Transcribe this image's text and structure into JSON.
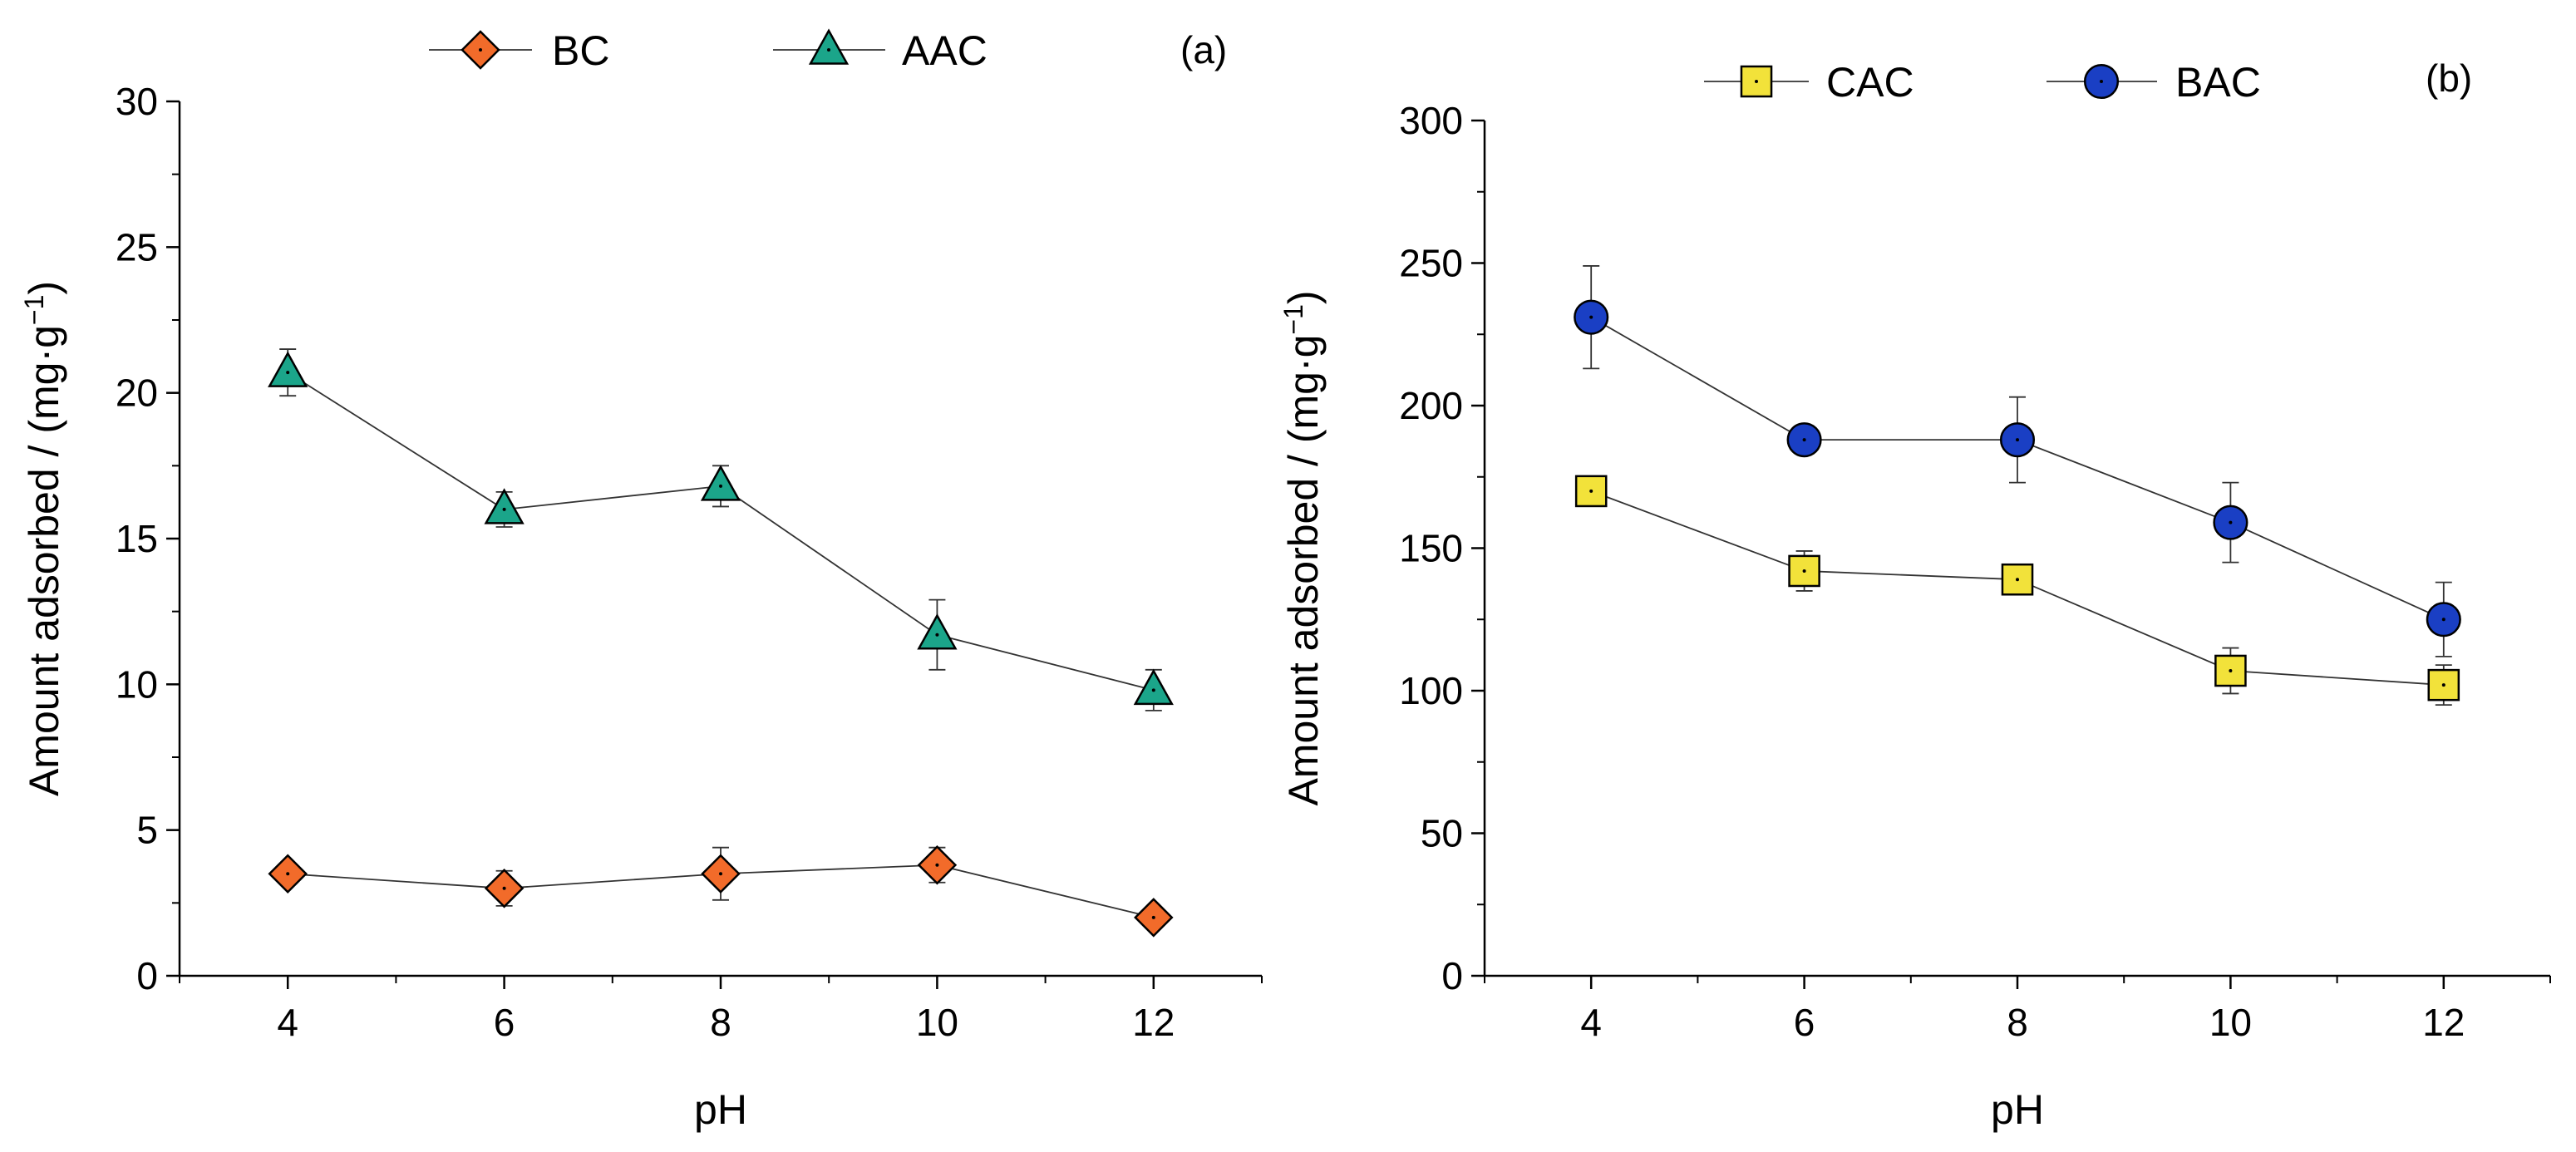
{
  "chart_data": [
    {
      "type": "line",
      "panel_label": "(a)",
      "xlabel": "pH",
      "ylabel": "Amount adsorbed / (mg·g",
      "ylabel_sup": "−1",
      "ylabel_close": ")",
      "x": [
        4,
        6,
        8,
        10,
        12
      ],
      "xlim": [
        3,
        13
      ],
      "ylim": [
        0,
        30
      ],
      "xticks": [
        4,
        6,
        8,
        10,
        12
      ],
      "yticks": [
        0,
        5,
        10,
        15,
        20,
        25,
        30
      ],
      "legend_position": "top",
      "series": [
        {
          "name": "BC",
          "marker": "diamond",
          "color": "#f26b2a",
          "values": [
            3.5,
            3.0,
            3.5,
            3.8,
            2.0
          ],
          "errors": [
            0.3,
            0.6,
            0.9,
            0.6,
            0.3
          ]
        },
        {
          "name": "AAC",
          "marker": "triangle",
          "color": "#1ba58a",
          "values": [
            20.7,
            16.0,
            16.8,
            11.7,
            9.8
          ],
          "errors": [
            0.8,
            0.6,
            0.7,
            1.2,
            0.7
          ]
        }
      ]
    },
    {
      "type": "line",
      "panel_label": "(b)",
      "xlabel": "pH",
      "ylabel": "Amount adsorbed / (mg·g",
      "ylabel_sup": "−1",
      "ylabel_close": ")",
      "x": [
        4,
        6,
        8,
        10,
        12
      ],
      "xlim": [
        3,
        13
      ],
      "ylim": [
        0,
        300
      ],
      "xticks": [
        4,
        6,
        8,
        10,
        12
      ],
      "yticks": [
        0,
        50,
        100,
        150,
        200,
        250,
        300
      ],
      "legend_position": "top",
      "series": [
        {
          "name": "CAC",
          "marker": "square",
          "color": "#f2e23a",
          "values": [
            170,
            142,
            139,
            107,
            102
          ],
          "errors": [
            2,
            7,
            5,
            8,
            7
          ]
        },
        {
          "name": "BAC",
          "marker": "circle",
          "color": "#1a3fc4",
          "values": [
            231,
            188,
            188,
            159,
            125
          ],
          "errors": [
            18,
            2,
            15,
            14,
            13
          ]
        }
      ]
    }
  ]
}
